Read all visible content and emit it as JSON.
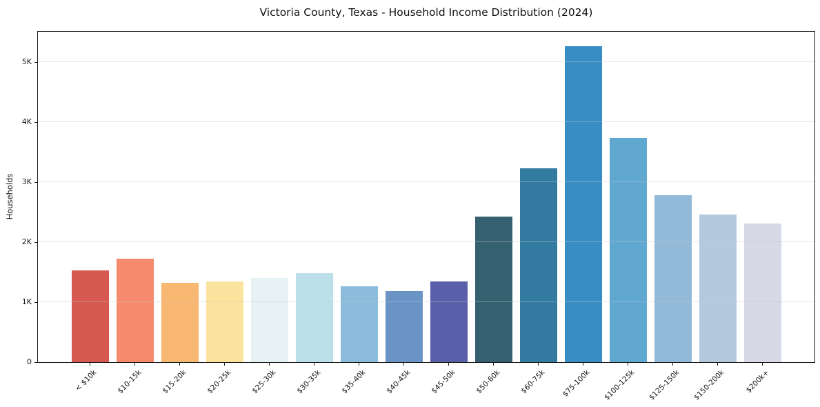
{
  "chart_data": {
    "type": "bar",
    "title": "Victoria County, Texas - Household Income Distribution (2024)",
    "xlabel": "",
    "ylabel": "Households",
    "categories": [
      "< $10k",
      "$10-15k",
      "$15-20k",
      "$20-25k",
      "$25-30k",
      "$30-35k",
      "$35-40k",
      "$40-45k",
      "$45-50k",
      "$50-60k",
      "$60-75k",
      "$75-100k",
      "$100-125k",
      "$125-150k",
      "$150-200k",
      "$200k+"
    ],
    "values": [
      1530,
      1720,
      1320,
      1340,
      1400,
      1480,
      1260,
      1180,
      1340,
      2430,
      3230,
      5260,
      3740,
      2780,
      2460,
      2310
    ],
    "bar_colors": [
      "#d6594f",
      "#f58b6c",
      "#f9b872",
      "#fce39d",
      "#e6f1f4",
      "#bce0ea",
      "#8cbcdb",
      "#6b94c6",
      "#5a5fa9",
      "#35606f",
      "#337ba0",
      "#388dc4",
      "#60a8d0",
      "#92b9d8",
      "#b5c9de",
      "#d7dae6"
    ],
    "yticks": {
      "values": [
        0,
        1000,
        2000,
        3000,
        4000,
        5000
      ],
      "labels": [
        "0",
        "1K",
        "2K",
        "3K",
        "4K",
        "5K"
      ]
    },
    "ylim": [
      0,
      5530
    ],
    "grid": "horizontal",
    "grid_above_bars": true,
    "legend": "none",
    "background_color": "#ffffff",
    "spine_color": "#1a1a1a",
    "gridline_color": "#ebebeb",
    "x_label_rotation_deg": 45
  }
}
